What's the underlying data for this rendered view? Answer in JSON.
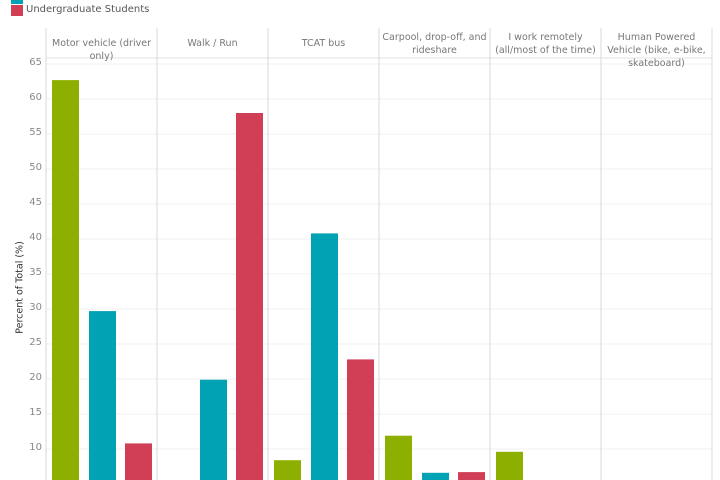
{
  "legend": {
    "items": [
      {
        "label": "",
        "color": "#00a2b4"
      },
      {
        "label": "Undergraduate Students",
        "color": "#d13f57"
      }
    ]
  },
  "chart_data": {
    "type": "bar",
    "ylabel": "Percent of Total (%)",
    "yticks": [
      10,
      15,
      20,
      25,
      30,
      35,
      40,
      45,
      50,
      55,
      60,
      65
    ],
    "ylim_visible": [
      4.4,
      67
    ],
    "grid": true,
    "legend_position": "top-left",
    "categories": [
      "Motor vehicle (driver only)",
      "Walk / Run",
      "TCAT bus",
      "Carpool, drop-off, and rideshare",
      "I work remotely (all/most of the time)",
      "Human Powered Vehicle (bike, e-bike, skateboard)"
    ],
    "series": [
      {
        "color": "#8db000",
        "values": [
          62.7,
          null,
          8.4,
          11.9,
          9.6,
          null
        ]
      },
      {
        "color": "#00a2b4",
        "values": [
          29.7,
          19.9,
          40.8,
          6.6,
          null,
          null
        ]
      },
      {
        "name": "Undergraduate Students",
        "color": "#d13f57",
        "values": [
          10.8,
          58.0,
          22.8,
          6.7,
          null,
          null
        ]
      }
    ]
  }
}
